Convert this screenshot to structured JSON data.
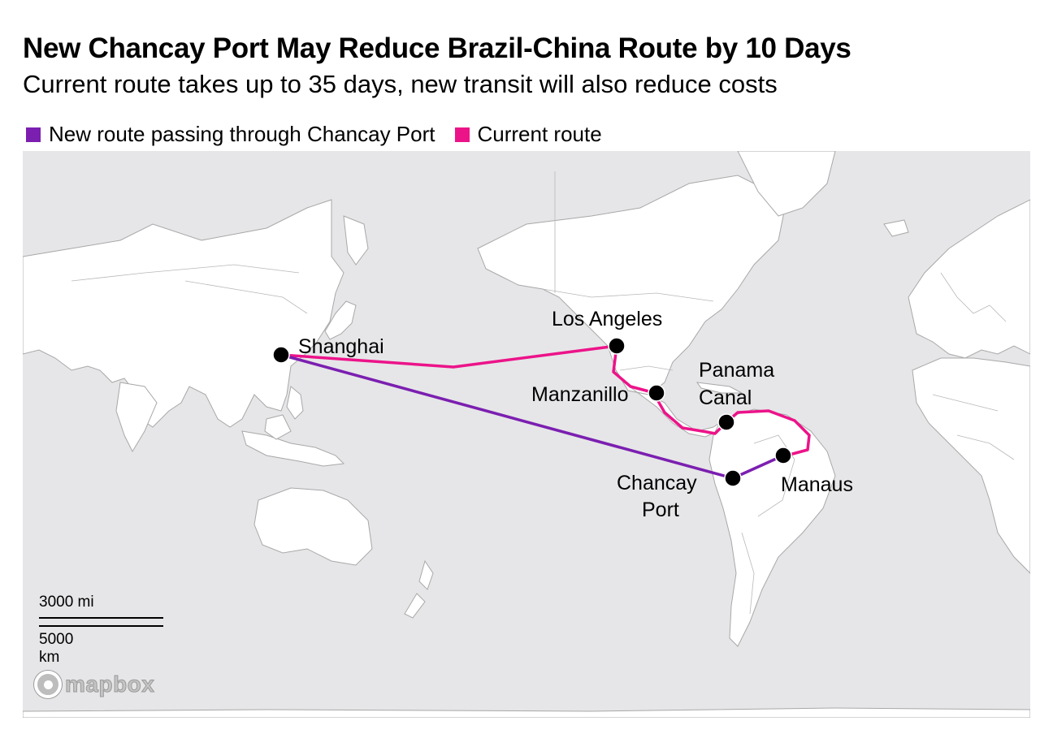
{
  "title": "New Chancay Port May Reduce Brazil-China Route by 10 Days",
  "subtitle": "Current route takes up to 35 days, new transit will also reduce costs",
  "legend": {
    "new_route": {
      "label": "New route passing through Chancay Port",
      "color": "#7b1fb0"
    },
    "current_route": {
      "label": "Current route",
      "color": "#ec1389"
    }
  },
  "places": {
    "shanghai": "Shanghai",
    "los_angeles": "Los Angeles",
    "manzanillo": "Manzanillo",
    "panama_canal_line1": "Panama",
    "panama_canal_line2": "Canal",
    "chancay_line1": "Chancay",
    "chancay_line2": "Port",
    "manaus": "Manaus"
  },
  "scale": {
    "miles": "3000 mi",
    "km": "5000 km"
  },
  "attribution": "mapbox",
  "colors": {
    "ocean": "#e6e6e8",
    "land": "#ffffff",
    "borders": "#9e9e9e",
    "marker": "#000000"
  }
}
